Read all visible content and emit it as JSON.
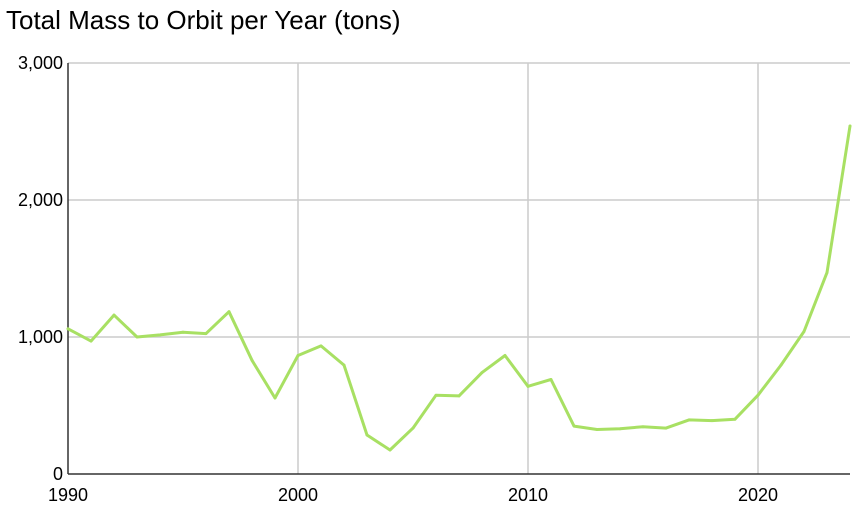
{
  "chart_data": {
    "type": "line",
    "title": "Total Mass to Orbit per Year (tons)",
    "xlabel": "",
    "ylabel": "",
    "xlim": [
      1990,
      2024
    ],
    "ylim": [
      0,
      3000
    ],
    "x_ticks": [
      1990,
      2000,
      2010,
      2020
    ],
    "x_tick_labels": [
      "1990",
      "2000",
      "2010",
      "2020"
    ],
    "y_ticks": [
      0,
      1000,
      2000,
      3000
    ],
    "y_tick_labels": [
      "0",
      "1,000",
      "2,000",
      "3,000"
    ],
    "grid": true,
    "legend": "none",
    "colors": {
      "line": "#a8e063",
      "grid": "#cccccc",
      "axis": "#333333"
    },
    "series": [
      {
        "x": [
          1990,
          1991,
          1992,
          1993,
          1994,
          1995,
          1996,
          1997,
          1998,
          1999,
          2000,
          2001,
          2002,
          2003,
          2004,
          2005,
          2006,
          2007,
          2008,
          2009,
          2010,
          2011,
          2012,
          2013,
          2014,
          2015,
          2016,
          2017,
          2018,
          2019,
          2020,
          2021,
          2022,
          2023,
          2024
        ],
        "values": [
          1060,
          970,
          1160,
          1000,
          1015,
          1035,
          1025,
          1185,
          830,
          555,
          865,
          935,
          795,
          285,
          175,
          335,
          575,
          570,
          740,
          865,
          640,
          690,
          350,
          325,
          330,
          345,
          335,
          395,
          390,
          400,
          575,
          795,
          1040,
          1470,
          2540
        ]
      }
    ]
  }
}
